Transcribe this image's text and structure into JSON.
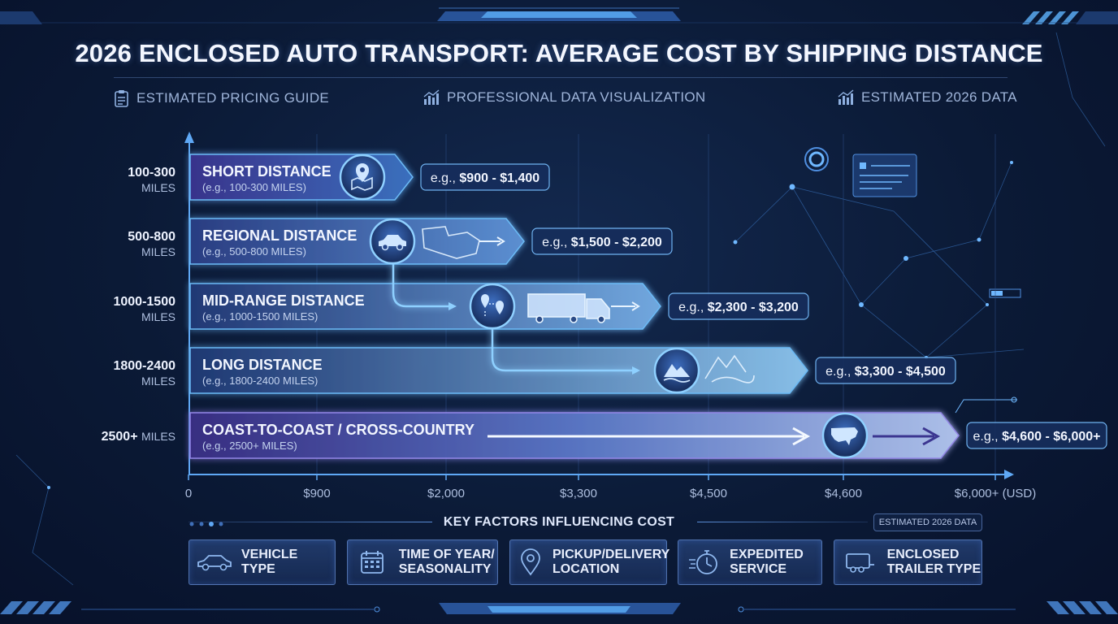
{
  "title": "2026 ENCLOSED AUTO TRANSPORT: AVERAGE COST BY SHIPPING DISTANCE",
  "subheads": [
    {
      "text": "ESTIMATED PRICING GUIDE",
      "icon": "clipboard-icon"
    },
    {
      "text": "PROFESSIONAL DATA VISUALIZATION",
      "icon": "bar-chart-icon"
    },
    {
      "text": "ESTIMATED 2026 DATA",
      "icon": "bar-chart-icon"
    }
  ],
  "chart_data": {
    "type": "bar",
    "orientation": "horizontal",
    "title": "2026 ENCLOSED AUTO TRANSPORT: AVERAGE COST BY SHIPPING DISTANCE",
    "x_ticks": [
      "0",
      "$900",
      "$2,000",
      "$3,300",
      "$4,500",
      "$4,600",
      "$6,000+ (USD)"
    ],
    "x_tick_values": [
      0,
      900,
      2000,
      3300,
      4500,
      4600,
      6000
    ],
    "grid": true,
    "categories": [
      {
        "range": "100-300",
        "unit": "MILES",
        "name": "SHORT DISTANCE",
        "sub": "(e.g., 100-300 MILES)",
        "cost_label": "e.g., $900 - $1,400",
        "cost_prefix": "e.g., ",
        "cost_value": "$900 - $1,400",
        "low": 900,
        "high": 1400,
        "icon": "map-pin-icon"
      },
      {
        "range": "500-800",
        "unit": "MILES",
        "name": "REGIONAL DISTANCE",
        "sub": "(e.g., 500-800 MILES)",
        "cost_label": "e.g., $1,500 - $2,200",
        "cost_prefix": "e.g., ",
        "cost_value": "$1,500 - $2,200",
        "low": 1500,
        "high": 2200,
        "icon": "car-icon"
      },
      {
        "range": "1000-1500",
        "unit": "MILES",
        "name": "MID-RANGE DISTANCE",
        "sub": "(e.g., 1000-1500 MILES)",
        "cost_label": "e.g., $2,300 - $3,200",
        "cost_prefix": "e.g., ",
        "cost_value": "$2,300 - $3,200",
        "low": 2300,
        "high": 3200,
        "icon": "route-icon"
      },
      {
        "range": "1800-2400",
        "unit": "MILES",
        "name": "LONG DISTANCE",
        "sub": "(e.g., 1800-2400 MILES)",
        "cost_label": "e.g., $3,300 - $4,500",
        "cost_prefix": "e.g., ",
        "cost_value": "$3,300 - $4,500",
        "low": 3300,
        "high": 4500,
        "icon": "mountain-icon"
      },
      {
        "range": "2500+",
        "unit": "MILES",
        "name": "COAST-TO-COAST / CROSS-COUNTRY",
        "sub": "(e.g., 2500+ MILES)",
        "cost_label": "e.g., $4,600 - $6,000+",
        "cost_prefix": "e.g., ",
        "cost_value": "$4,600 - $6,000+",
        "low": 4600,
        "high": 6000,
        "icon": "usa-map-icon"
      }
    ]
  },
  "factors": {
    "title": "KEY FACTORS INFLUENCING COST",
    "badge": "ESTIMATED 2026 DATA",
    "items": [
      {
        "label": "VEHICLE\nTYPE",
        "icon": "car-icon"
      },
      {
        "label": "TIME OF YEAR/\nSEASONALITY",
        "icon": "calendar-icon"
      },
      {
        "label": "PICKUP/DELIVERY\nLOCATION",
        "icon": "location-pin-icon"
      },
      {
        "label": "EXPEDITED\nSERVICE",
        "icon": "stopwatch-icon"
      },
      {
        "label": "ENCLOSED\nTRAILER TYPE",
        "icon": "trailer-icon"
      }
    ]
  },
  "colors": {
    "bg": "#0b1a36",
    "accent": "#5fb4ff",
    "purple": "#7a5cd6",
    "text": "#eef3ff"
  }
}
